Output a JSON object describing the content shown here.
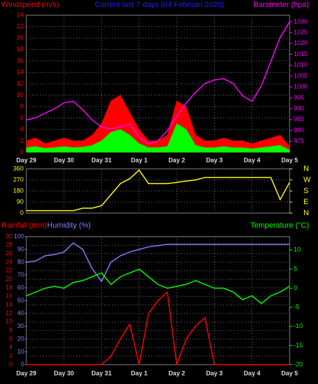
{
  "chart_data": [
    {
      "type": "line",
      "title": "Current last 7 days (04 Februari 2020)",
      "ylabel": "Windspeed (m/s)",
      "y2label": "Barometer (hpa)",
      "xlim": [
        0,
        7
      ],
      "xticks": [
        {
          "value": 0,
          "label": "Day 29"
        },
        {
          "value": 1,
          "label": "Day 30"
        },
        {
          "value": 2,
          "label": "Day 31"
        },
        {
          "value": 3,
          "label": "Day 1"
        },
        {
          "value": 4,
          "label": "Day 2"
        },
        {
          "value": 5,
          "label": "Day 3"
        },
        {
          "value": 6,
          "label": "Day 4"
        },
        {
          "value": 7,
          "label": "Day 5"
        }
      ],
      "ylim": [
        0,
        24
      ],
      "yticks": [
        0,
        2,
        4,
        6,
        8,
        10,
        12,
        14,
        16,
        18,
        20,
        22,
        24
      ],
      "ycolor": "#ff0000",
      "y2lim": [
        970,
        1033
      ],
      "y2ticks": [
        975,
        980,
        985,
        990,
        995,
        1000,
        1005,
        1010,
        1015,
        1020,
        1025,
        1030
      ],
      "y2color": "#ff00ff",
      "grid": true,
      "x": [
        0,
        0.25,
        0.5,
        0.75,
        1,
        1.25,
        1.5,
        1.75,
        2,
        2.25,
        2.5,
        2.75,
        3,
        3.25,
        3.5,
        3.75,
        4,
        4.25,
        4.5,
        4.75,
        5,
        5.25,
        5.5,
        5.75,
        6,
        6.25,
        6.5,
        6.75,
        7
      ],
      "series": [
        {
          "color": "#ff0000",
          "fill": true,
          "values": [
            2,
            2.5,
            1.5,
            2,
            2.5,
            2,
            2,
            3,
            5,
            9,
            10,
            7,
            4,
            2,
            2,
            3,
            9,
            8,
            3,
            2,
            2,
            2.5,
            2,
            2,
            1.5,
            2,
            2.5,
            3,
            1
          ]
        },
        {
          "color": "#00ff00",
          "fill": true,
          "values": [
            0.8,
            1,
            0.7,
            0.8,
            1,
            0.8,
            0.9,
            1.2,
            2,
            3.5,
            4,
            3,
            1.5,
            0.8,
            0.8,
            1,
            5,
            4,
            1.2,
            0.8,
            0.8,
            1,
            0.8,
            0.8,
            0.6,
            0.8,
            1,
            1.2,
            0.4
          ]
        },
        {
          "color": "#ff00ff",
          "axis": "y2",
          "values": [
            984.8,
            985.8,
            988,
            990,
            992.7,
            993.4,
            989.5,
            984.8,
            981.6,
            980.7,
            981.6,
            983,
            977,
            973.7,
            975.3,
            980,
            986.4,
            992.7,
            997.5,
            1001.6,
            1003.2,
            1003.8,
            1001.6,
            995.9,
            993.4,
            1000.6,
            1011.7,
            1022.8,
            1030
          ]
        }
      ]
    },
    {
      "type": "line",
      "xlim": [
        0,
        7
      ],
      "xticks": [
        {
          "value": 0,
          "label": "Day 29"
        },
        {
          "value": 1,
          "label": "Day 30"
        },
        {
          "value": 2,
          "label": "Day 31"
        },
        {
          "value": 3,
          "label": "Day 1"
        },
        {
          "value": 4,
          "label": "Day 2"
        },
        {
          "value": 5,
          "label": "Day 3"
        },
        {
          "value": 6,
          "label": "Day 4"
        },
        {
          "value": 7,
          "label": "Day 5"
        }
      ],
      "ylim": [
        0,
        360
      ],
      "yticks": [
        0,
        90,
        180,
        270,
        360
      ],
      "ycolor": "#ffff00",
      "y2lim": [
        0,
        360
      ],
      "y2ticks": [
        {
          "value": 360,
          "label": "N"
        },
        {
          "value": 270,
          "label": "W"
        },
        {
          "value": 180,
          "label": "S"
        },
        {
          "value": 90,
          "label": "E"
        },
        {
          "value": 0,
          "label": "N"
        }
      ],
      "y2color": "#ffff00",
      "grid": true,
      "x": [
        0,
        0.25,
        0.5,
        0.75,
        1,
        1.25,
        1.5,
        1.75,
        2,
        2.25,
        2.5,
        2.75,
        3,
        3.25,
        3.5,
        3.75,
        4,
        4.25,
        4.5,
        4.75,
        5,
        5.25,
        5.5,
        5.75,
        6,
        6.25,
        6.5,
        6.75,
        7
      ],
      "series": [
        {
          "color": "#ffff00",
          "values": [
            20,
            20,
            20,
            20,
            20,
            20,
            40,
            40,
            60,
            150,
            240,
            280,
            350,
            240,
            240,
            240,
            250,
            260,
            270,
            290,
            290,
            290,
            290,
            290,
            290,
            290,
            290,
            110,
            250
          ]
        }
      ]
    },
    {
      "type": "line",
      "ylabel": "Rainfall (mm)",
      "y3label": "Humidity (%)",
      "y2label": "Temperature (°C)",
      "xlim": [
        0,
        7
      ],
      "xticks": [
        {
          "value": 0,
          "label": "Day 29"
        },
        {
          "value": 1,
          "label": "Day 30"
        },
        {
          "value": 2,
          "label": "Day 31"
        },
        {
          "value": 3,
          "label": "Day 1"
        },
        {
          "value": 4,
          "label": "Day 2"
        },
        {
          "value": 5,
          "label": "Day 3"
        },
        {
          "value": 6,
          "label": "Day 4"
        },
        {
          "value": 7,
          "label": "Day 5"
        }
      ],
      "ylim": [
        0,
        30
      ],
      "yticks": [
        0,
        2,
        4,
        6,
        8,
        10,
        12,
        14,
        16,
        18,
        20,
        22,
        24,
        26,
        28,
        30
      ],
      "ycolor": "#ff0000",
      "y3lim": [
        0,
        100
      ],
      "y3ticks": [
        0,
        10,
        20,
        30,
        40,
        50,
        60,
        70,
        80,
        90,
        100
      ],
      "y3color": "#8080ff",
      "y2lim": [
        -20,
        13.5
      ],
      "y2ticks": [
        -20,
        -15,
        -10,
        -5,
        0,
        5,
        10
      ],
      "y2color": "#00ff00",
      "grid": true,
      "x": [
        0,
        0.25,
        0.5,
        0.75,
        1,
        1.25,
        1.5,
        1.75,
        2,
        2.25,
        2.5,
        2.75,
        3,
        3.25,
        3.5,
        3.75,
        4,
        4.25,
        4.5,
        4.75,
        5,
        5.25,
        5.5,
        5.75,
        6,
        6.25,
        6.5,
        6.75,
        7
      ],
      "series": [
        {
          "color": "#ff0000",
          "values": [
            0,
            0,
            0,
            0,
            0,
            0,
            0,
            0,
            0,
            2,
            6,
            9.5,
            0,
            12,
            15,
            17,
            0,
            6,
            9,
            11,
            0,
            0,
            0,
            0,
            0,
            0,
            0,
            0,
            0
          ]
        },
        {
          "color": "#8080ff",
          "axis": "y3",
          "values": [
            80,
            81,
            85,
            86,
            88,
            95,
            90,
            75,
            65,
            80,
            85,
            88,
            90,
            92,
            93,
            94,
            94,
            94,
            94,
            94,
            94,
            94,
            94,
            94,
            94,
            94,
            94,
            94,
            94
          ]
        },
        {
          "color": "#00ff00",
          "axis": "y2",
          "values": [
            -2,
            -1,
            0,
            0.5,
            0,
            1.5,
            2,
            3,
            4,
            1,
            3,
            4,
            5,
            3,
            1,
            0,
            0.5,
            1,
            2,
            1,
            0,
            0,
            -1,
            -3,
            -2,
            -4,
            -2,
            -1,
            0.5
          ]
        }
      ]
    }
  ]
}
